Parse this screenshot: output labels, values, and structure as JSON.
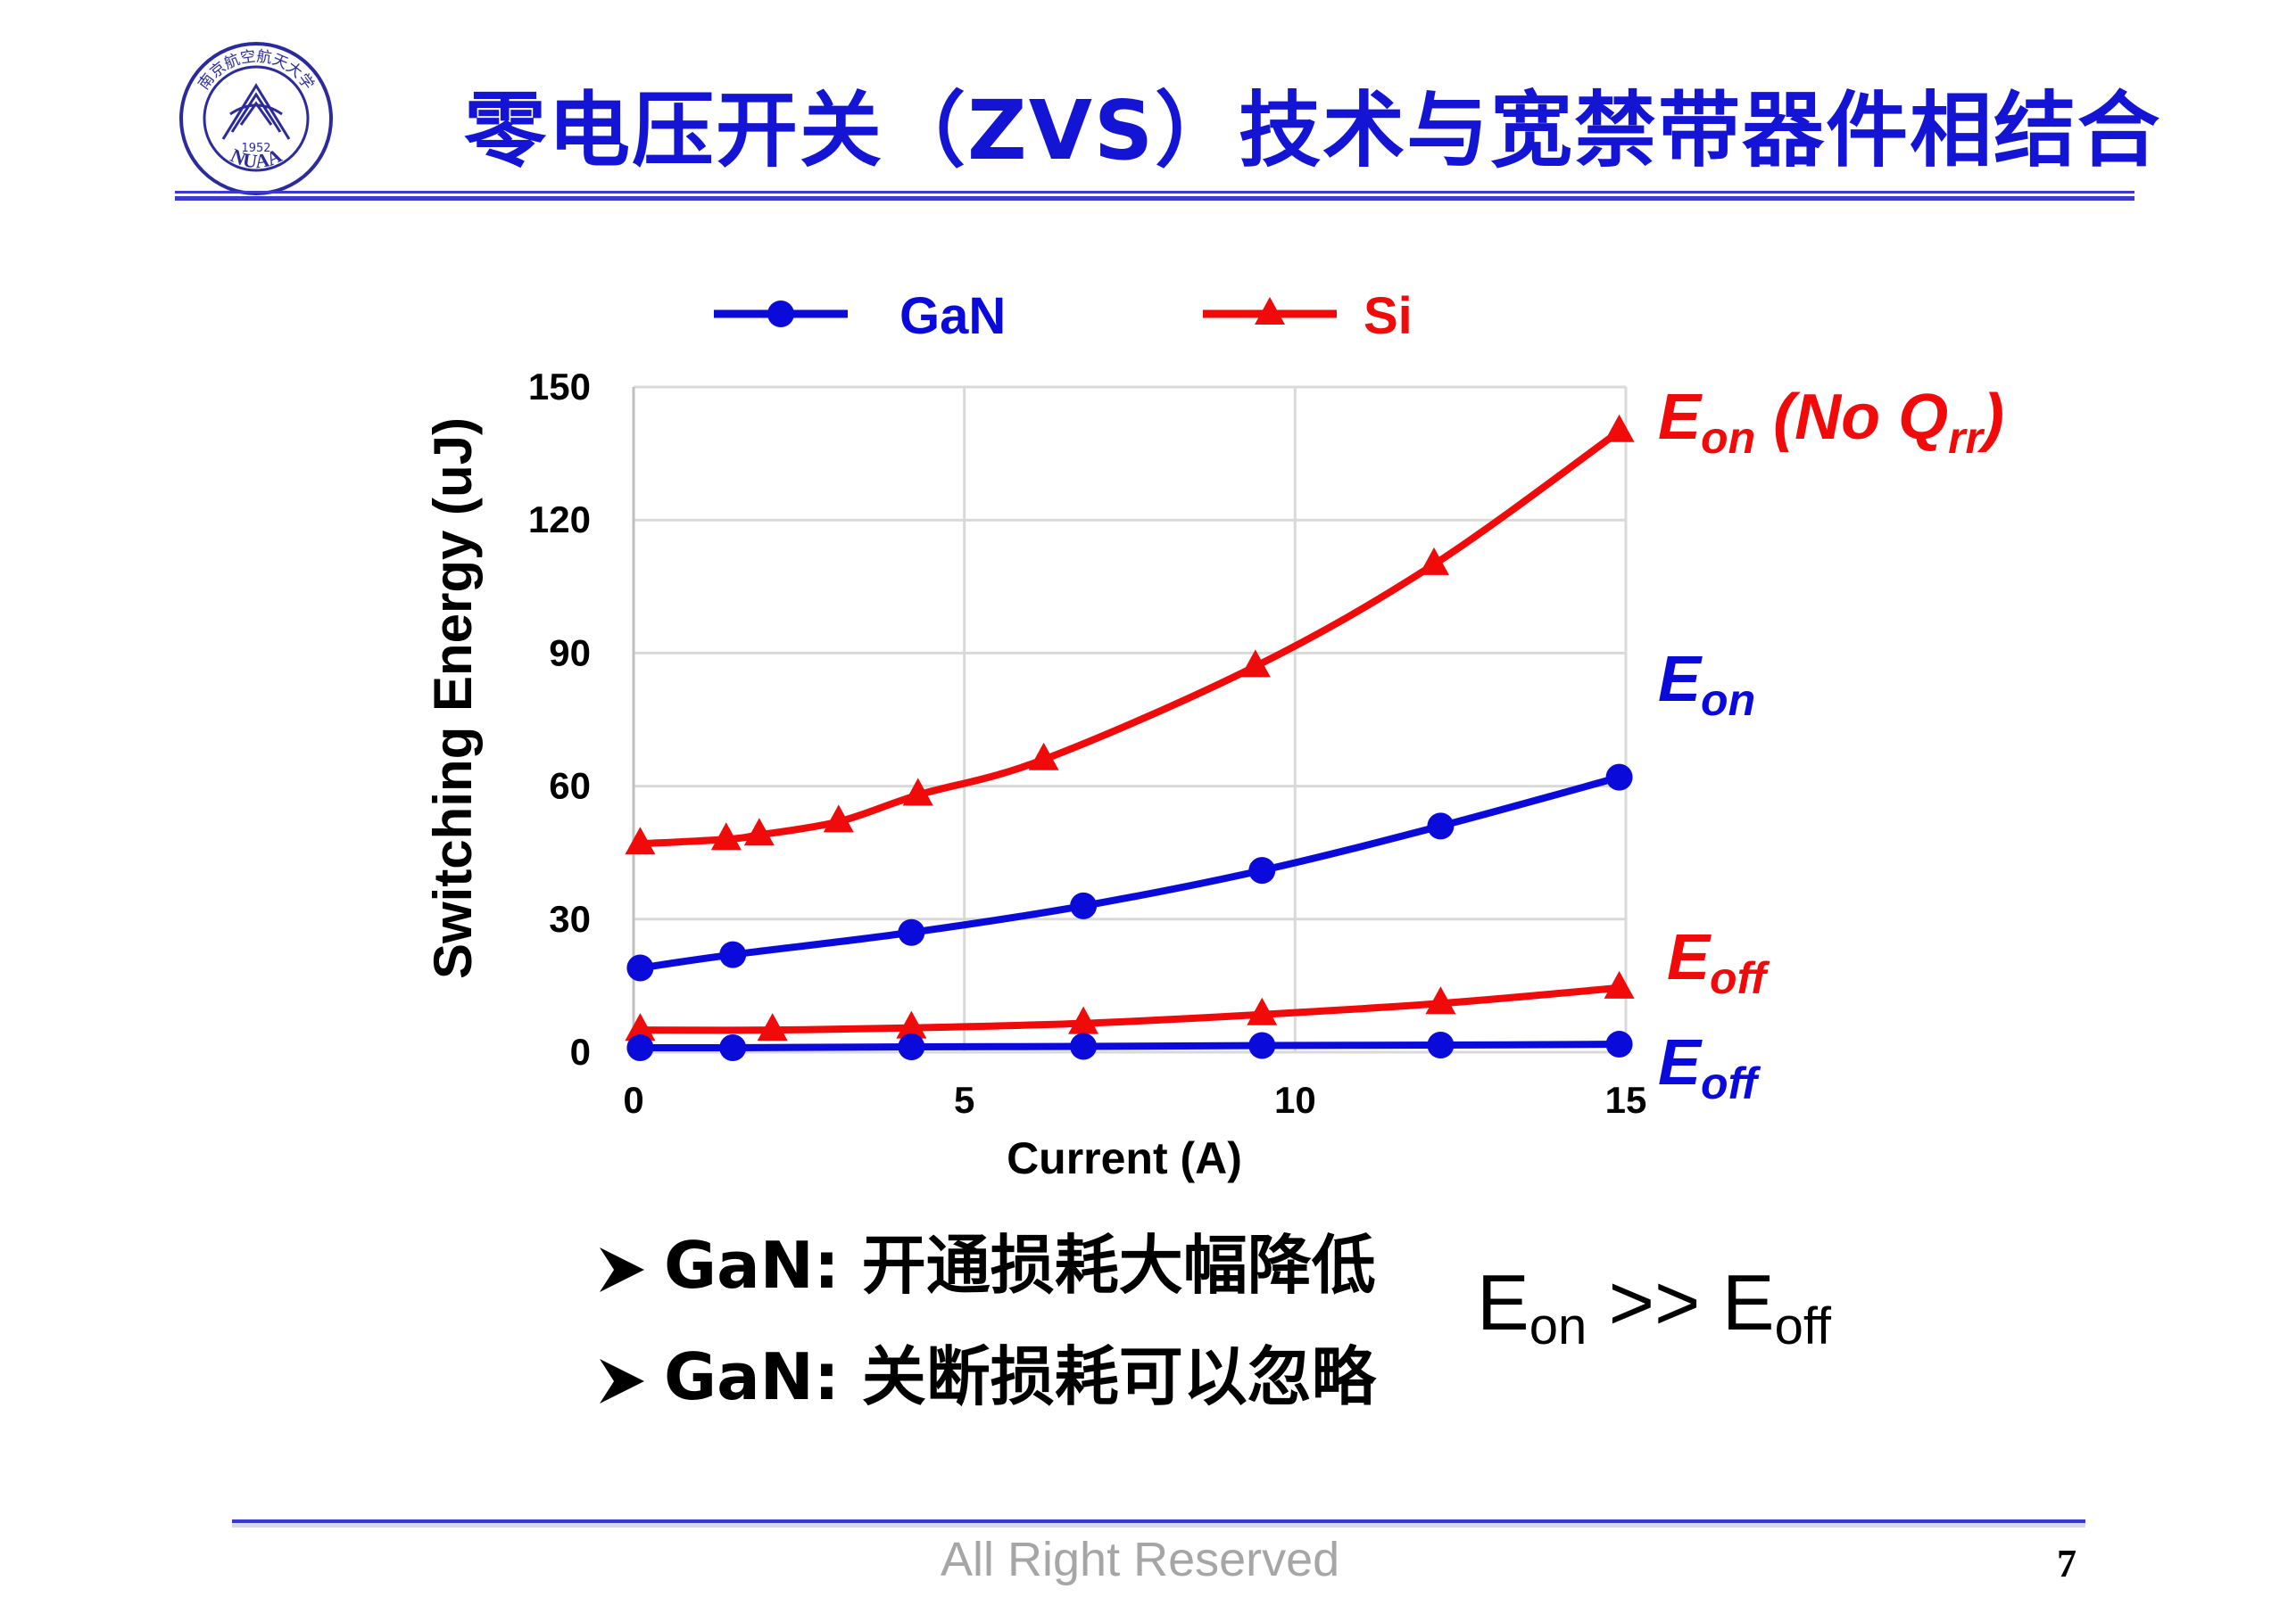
{
  "title": "零电压开关（ZVS）技术与宽禁带器件相结合",
  "logo": {
    "top_text": "南京航空航天大学",
    "bottom_text": "NUAA",
    "year": "1952"
  },
  "colors": {
    "gan": "#0a0adb",
    "si": "#f00a0a",
    "title": "#1414d4",
    "rule": "#3a3ad0",
    "footer": "#a6a6a6"
  },
  "bullets": [
    {
      "icon": "arrow-bullet-icon",
      "text": "GaN: 开通损耗大幅降低"
    },
    {
      "icon": "arrow-bullet-icon",
      "text": "GaN: 关断损耗可以忽略"
    }
  ],
  "relation": {
    "lhs": "E",
    "lhs_sub": "on",
    "op": " >> ",
    "rhs": "E",
    "rhs_sub": "off"
  },
  "footer": "All Right Reserved",
  "page_number": "7",
  "chart_data": {
    "type": "line",
    "xlabel": "Current (A)",
    "ylabel": "Switching Energy (uJ)",
    "xlim": [
      0,
      15
    ],
    "ylim": [
      0,
      150
    ],
    "xticks": [
      0,
      5,
      10,
      15
    ],
    "yticks": [
      0,
      30,
      60,
      90,
      120,
      150
    ],
    "grid": true,
    "legend": {
      "placement": "top",
      "entries": [
        {
          "name": "GaN",
          "marker": "circle"
        },
        {
          "name": "Si",
          "marker": "triangle"
        }
      ]
    },
    "series": [
      {
        "name": "Si Eon (No Qrr)",
        "device": "Si",
        "marker": "triangle",
        "x": [
          0.1,
          1.4,
          1.9,
          3.1,
          4.3,
          6.2,
          9.4,
          12.1,
          14.9
        ],
        "y": [
          47,
          48,
          49,
          52,
          58,
          66,
          87,
          110,
          140
        ]
      },
      {
        "name": "GaN Eon",
        "device": "GaN",
        "marker": "circle",
        "x": [
          0.1,
          1.5,
          4.2,
          6.8,
          9.5,
          12.2,
          14.9
        ],
        "y": [
          19,
          22,
          27,
          33,
          41,
          51,
          62
        ]
      },
      {
        "name": "Si Eoff",
        "device": "Si",
        "marker": "triangle",
        "x": [
          0.1,
          2.1,
          4.2,
          6.8,
          9.5,
          12.2,
          14.9
        ],
        "y": [
          5,
          5,
          5.5,
          6.5,
          8.5,
          11,
          14.5
        ]
      },
      {
        "name": "GaN Eoff",
        "device": "GaN",
        "marker": "circle",
        "x": [
          0.1,
          1.5,
          4.2,
          6.8,
          9.5,
          12.2,
          14.9
        ],
        "y": [
          1,
          1,
          1.2,
          1.3,
          1.5,
          1.6,
          1.8
        ]
      }
    ],
    "annotations": [
      {
        "series": "Si Eon (No Qrr)",
        "main": "E",
        "sub": "on",
        "extra": " (No Q",
        "extra_sub": "rr",
        "close": ")"
      },
      {
        "series": "GaN Eon",
        "main": "E",
        "sub": "on"
      },
      {
        "series": "Si Eoff",
        "main": "E",
        "sub": "off"
      },
      {
        "series": "GaN Eoff",
        "main": "E",
        "sub": "off"
      }
    ]
  }
}
